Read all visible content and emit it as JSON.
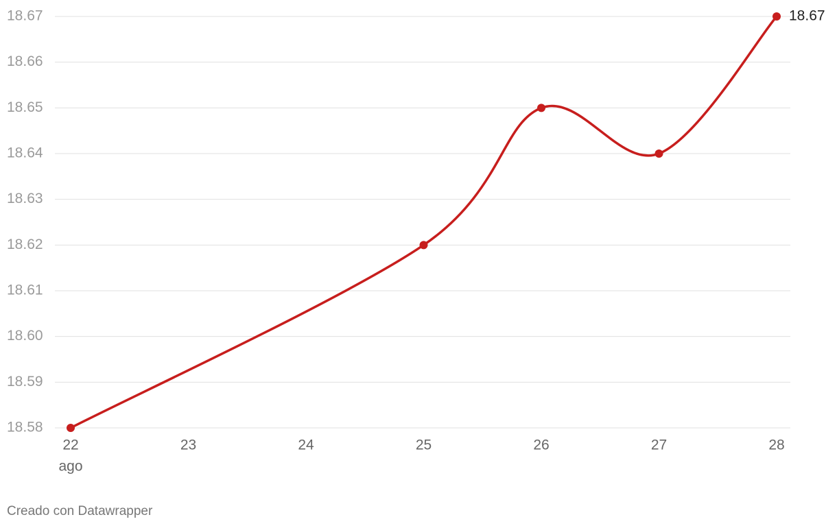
{
  "chart_data": {
    "type": "line",
    "x": [
      22,
      25,
      26,
      27,
      28
    ],
    "xlim": [
      22,
      28
    ],
    "xticks": [
      22,
      23,
      24,
      25,
      26,
      27,
      28
    ],
    "xtick_sublabel": "ago",
    "series": [
      {
        "color": "#c71e1d",
        "values": [
          18.58,
          18.62,
          18.65,
          18.64,
          18.67
        ]
      }
    ],
    "ylim": [
      18.58,
      18.67
    ],
    "yticks": [
      18.58,
      18.59,
      {
        "value": 18.6,
        "label": "18.60"
      },
      18.61,
      18.62,
      18.63,
      18.64,
      18.65,
      18.66,
      18.67
    ],
    "grid": true,
    "end_label": true,
    "footer": "Creado con Datawrapper"
  }
}
